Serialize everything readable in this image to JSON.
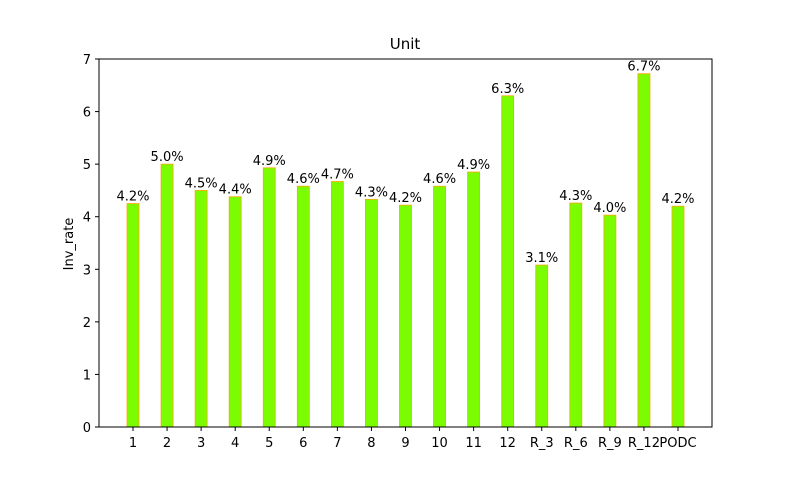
{
  "chart_data": {
    "type": "bar",
    "title": "Unit",
    "xlabel": "",
    "ylabel": "Inv_rate",
    "categories": [
      "1",
      "2",
      "3",
      "4",
      "5",
      "6",
      "7",
      "8",
      "9",
      "10",
      "11",
      "12",
      "R_3",
      "R_6",
      "R_9",
      "R_12",
      "PODC"
    ],
    "values": [
      4.25,
      5.0,
      4.5,
      4.38,
      4.93,
      4.58,
      4.67,
      4.33,
      4.22,
      4.58,
      4.85,
      6.3,
      3.08,
      4.26,
      4.03,
      6.72,
      4.2
    ],
    "data_labels": [
      "4.2%",
      "5.0%",
      "4.5%",
      "4.4%",
      "4.9%",
      "4.6%",
      "4.7%",
      "4.3%",
      "4.2%",
      "4.6%",
      "4.9%",
      "6.3%",
      "3.1%",
      "4.3%",
      "4.0%",
      "6.7%",
      "4.2%"
    ],
    "ylim": [
      0,
      7
    ],
    "yticks": [
      0,
      1,
      2,
      3,
      4,
      5,
      6,
      7
    ],
    "grid": false,
    "colors": {
      "bar_fill": "#7cfc00",
      "bar_edge": "#ffa500"
    }
  }
}
